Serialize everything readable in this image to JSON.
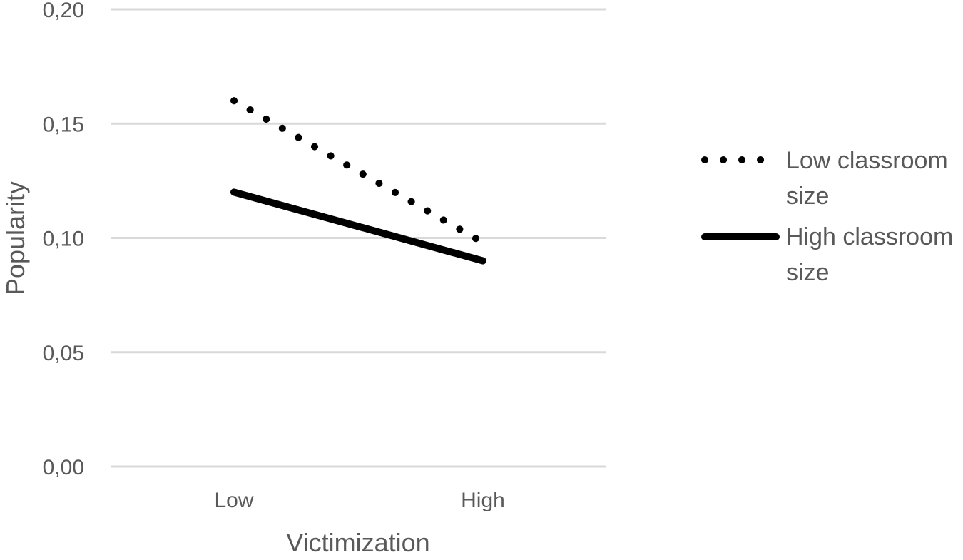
{
  "chart_data": {
    "type": "line",
    "title": "",
    "xlabel": "Victimization",
    "ylabel": "Popularity",
    "categories": [
      "Low",
      "High"
    ],
    "ylim": [
      0,
      0.2
    ],
    "yticks": [
      0,
      0.05,
      0.1,
      0.15,
      0.2
    ],
    "ytick_labels": [
      "0,00",
      "0,05",
      "0,10",
      "0,15",
      "0,20"
    ],
    "grid": true,
    "legend_position": "right",
    "series": [
      {
        "name": "Low classroom size",
        "name_lines": [
          "Low classroom",
          "size"
        ],
        "values": [
          0.16,
          0.098
        ],
        "style": "dotted",
        "color": "#000000"
      },
      {
        "name": "High classroom size",
        "name_lines": [
          "High classroom",
          "size"
        ],
        "values": [
          0.12,
          0.09
        ],
        "style": "solid",
        "color": "#000000"
      }
    ],
    "colors": {
      "gridline": "#d9d9d9",
      "text": "#595959"
    }
  }
}
